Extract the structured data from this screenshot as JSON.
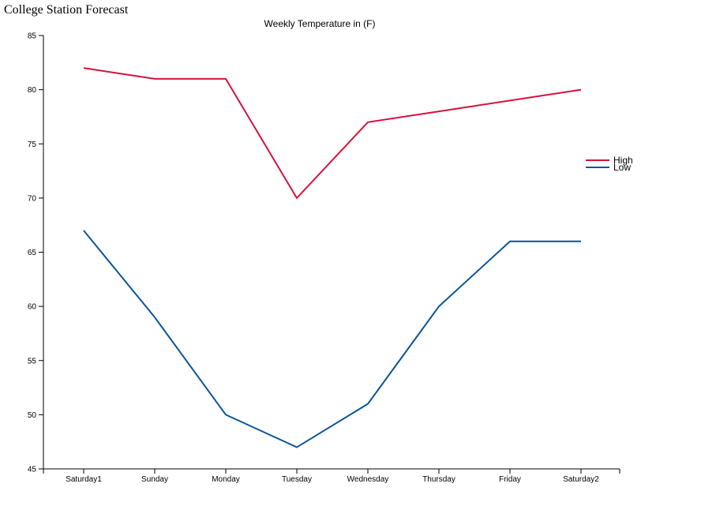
{
  "page": {
    "title": "College Station Forecast"
  },
  "chart_data": {
    "type": "line",
    "title": "Weekly Temperature in (F)",
    "xlabel": "",
    "ylabel": "",
    "categories": [
      "Saturday1",
      "Sunday",
      "Monday",
      "Tuesday",
      "Wednesday",
      "Thursday",
      "Friday",
      "Saturday2"
    ],
    "ylim": [
      45,
      85
    ],
    "yticks": [
      45,
      50,
      55,
      60,
      65,
      70,
      75,
      80,
      85
    ],
    "grid": false,
    "legend_position": "right",
    "series": [
      {
        "name": "High",
        "color": "#d6113b",
        "values": [
          82,
          81,
          81,
          70,
          77,
          78,
          79,
          80
        ]
      },
      {
        "name": "Low",
        "color": "#0a5499",
        "values": [
          67,
          59,
          50,
          47,
          51,
          60,
          66,
          66
        ]
      }
    ]
  }
}
